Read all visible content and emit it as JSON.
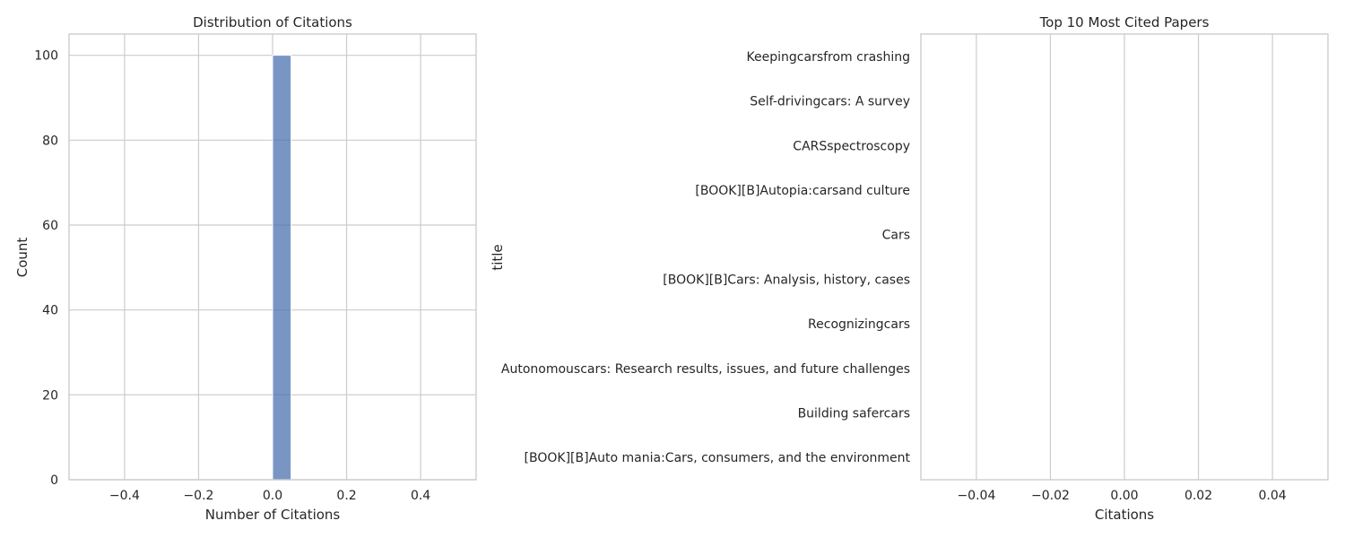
{
  "chart_data": [
    {
      "type": "bar",
      "title": "Distribution of Citations",
      "xlabel": "Number of Citations",
      "ylabel": "Count",
      "xlim": [
        -0.55,
        0.55
      ],
      "ylim": [
        0,
        105
      ],
      "x_ticks": [
        -0.4,
        -0.2,
        0.0,
        0.2,
        0.4
      ],
      "x_tick_labels": [
        "−0.4",
        "−0.2",
        "0.0",
        "0.2",
        "0.4"
      ],
      "y_ticks": [
        0,
        20,
        40,
        60,
        80,
        100
      ],
      "y_tick_labels": [
        "0",
        "20",
        "40",
        "60",
        "80",
        "100"
      ],
      "bins": [
        {
          "x0": 0.0,
          "x1": 0.05,
          "count": 100
        }
      ],
      "bar_color": "#4c72b0",
      "grid": true,
      "legend": "none"
    },
    {
      "type": "bar",
      "orientation": "horizontal",
      "title": "Top 10 Most Cited Papers",
      "xlabel": "Citations",
      "ylabel": "title",
      "xlim": [
        -0.055,
        0.055
      ],
      "x_ticks": [
        -0.04,
        -0.02,
        0.0,
        0.02,
        0.04
      ],
      "x_tick_labels": [
        "−0.04",
        "−0.02",
        "0.00",
        "0.02",
        "0.04"
      ],
      "categories": [
        "Keepingcarsfrom crashing",
        "Self-drivingcars: A survey",
        "CARSspectroscopy",
        "[BOOK][B]Autopia:carsand culture",
        "Cars",
        "[BOOK][B]Cars: Analysis, history, cases",
        "Recognizingcars",
        "Autonomouscars: Research results, issues, and future challenges",
        "Building safercars",
        "[BOOK][B]Auto mania:Cars, consumers, and the environment"
      ],
      "values": [
        0,
        0,
        0,
        0,
        0,
        0,
        0,
        0,
        0,
        0
      ],
      "grid": true,
      "legend": "none"
    }
  ]
}
